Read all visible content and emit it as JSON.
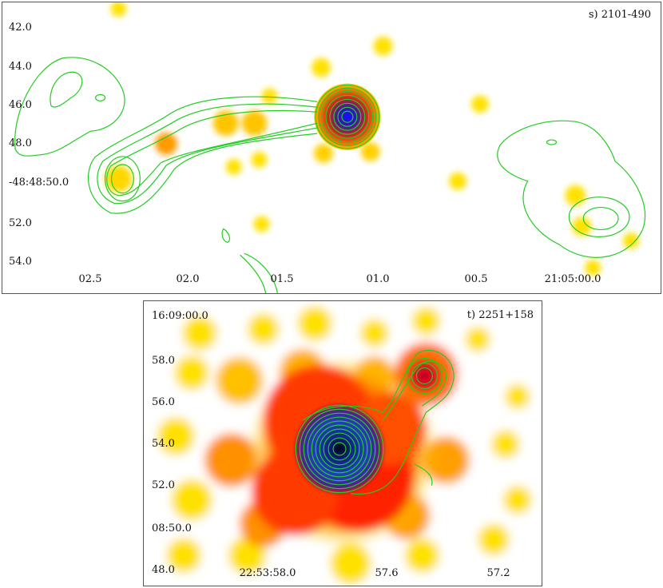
{
  "colors": {
    "contour": "#22cc22",
    "frame": "#555555"
  },
  "panels": [
    {
      "label": "s) 2101-490",
      "y_ticks": [
        "42.0",
        "44.0",
        "46.0",
        "48.0",
        "-48:48:50.0",
        "52.0",
        "54.0"
      ],
      "x_ticks": [
        "02.5",
        "02.0",
        "01.5",
        "01.0",
        "00.5",
        "21:05:00.0"
      ]
    },
    {
      "label": "t) 2251+158",
      "y_ticks": [
        "16:09:00.0",
        "58.0",
        "56.0",
        "54.0",
        "52.0",
        "08:50.0",
        "48.0"
      ],
      "x_ticks": [
        "22:53:58.0",
        "57.6",
        "57.2"
      ]
    }
  ]
}
